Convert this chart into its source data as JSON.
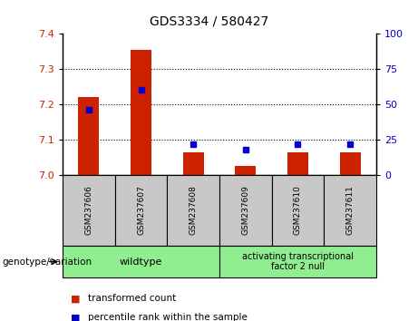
{
  "title": "GDS3334 / 580427",
  "samples": [
    "GSM237606",
    "GSM237607",
    "GSM237608",
    "GSM237609",
    "GSM237610",
    "GSM237611"
  ],
  "transformed_count": [
    7.22,
    7.355,
    7.065,
    7.025,
    7.065,
    7.065
  ],
  "percentile_rank": [
    46,
    60,
    22,
    18,
    22,
    22
  ],
  "ylim_left": [
    7.0,
    7.4
  ],
  "ylim_right": [
    0,
    100
  ],
  "yticks_left": [
    7.0,
    7.1,
    7.2,
    7.3,
    7.4
  ],
  "yticks_right": [
    0,
    25,
    50,
    75,
    100
  ],
  "bar_color": "#cc2200",
  "dot_color": "#0000cc",
  "background_label": "#c8c8c8",
  "background_genotype": "#90ee90",
  "genotype_labels": [
    "wildtype",
    "activating transcriptional\nfactor 2 null"
  ],
  "legend_items": [
    "transformed count",
    "percentile rank within the sample"
  ],
  "xlabel_area": "genotype/variation",
  "n_wildtype": 3,
  "n_atf2null": 3
}
